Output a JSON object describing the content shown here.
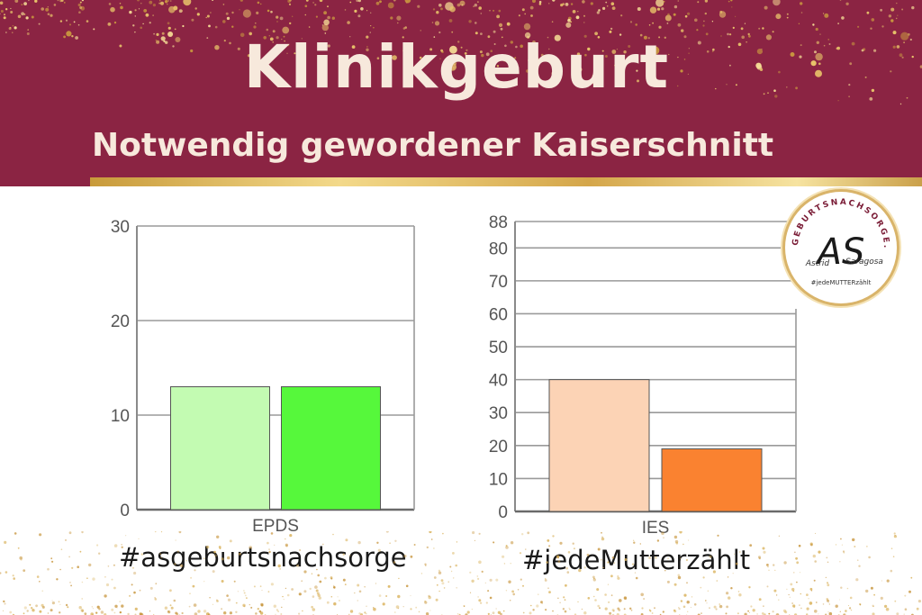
{
  "header": {
    "title": "Klinikgeburt",
    "subtitle": "Notwendig gewordener Kaiserschnitt"
  },
  "logo": {
    "ring_text": "GEBURTSNACHSORGE.DE",
    "initials": "AS",
    "name_left": "Astrid",
    "name_right": "Saragosa",
    "tagline": "#jedeMUTTERzählt"
  },
  "hashtags": {
    "left": "#asgeburtsnachsorge",
    "right": "#jedeMutterzählt"
  },
  "colors": {
    "banner": "#8b2443",
    "gold": "#d4a64a",
    "epds_light": "#c3fbb2",
    "epds_dark": "#56f83b",
    "ies_light": "#fcd3b5",
    "ies_dark": "#fa8230"
  },
  "chart_data": [
    {
      "type": "bar",
      "categories": [
        "EPDS"
      ],
      "series": [
        {
          "values": [
            13
          ],
          "color": "#c3fbb2"
        },
        {
          "values": [
            13
          ],
          "color": "#56f83b"
        }
      ],
      "ylim": [
        0,
        30
      ],
      "yticks": [
        0,
        10,
        20,
        30
      ],
      "grid": true
    },
    {
      "type": "bar",
      "categories": [
        "IES"
      ],
      "series": [
        {
          "values": [
            40
          ],
          "color": "#fcd3b5"
        },
        {
          "values": [
            19
          ],
          "color": "#fa8230"
        }
      ],
      "ylim": [
        0,
        88
      ],
      "yticks": [
        0,
        10,
        20,
        30,
        40,
        50,
        60,
        70,
        80,
        88
      ],
      "grid": true
    }
  ]
}
